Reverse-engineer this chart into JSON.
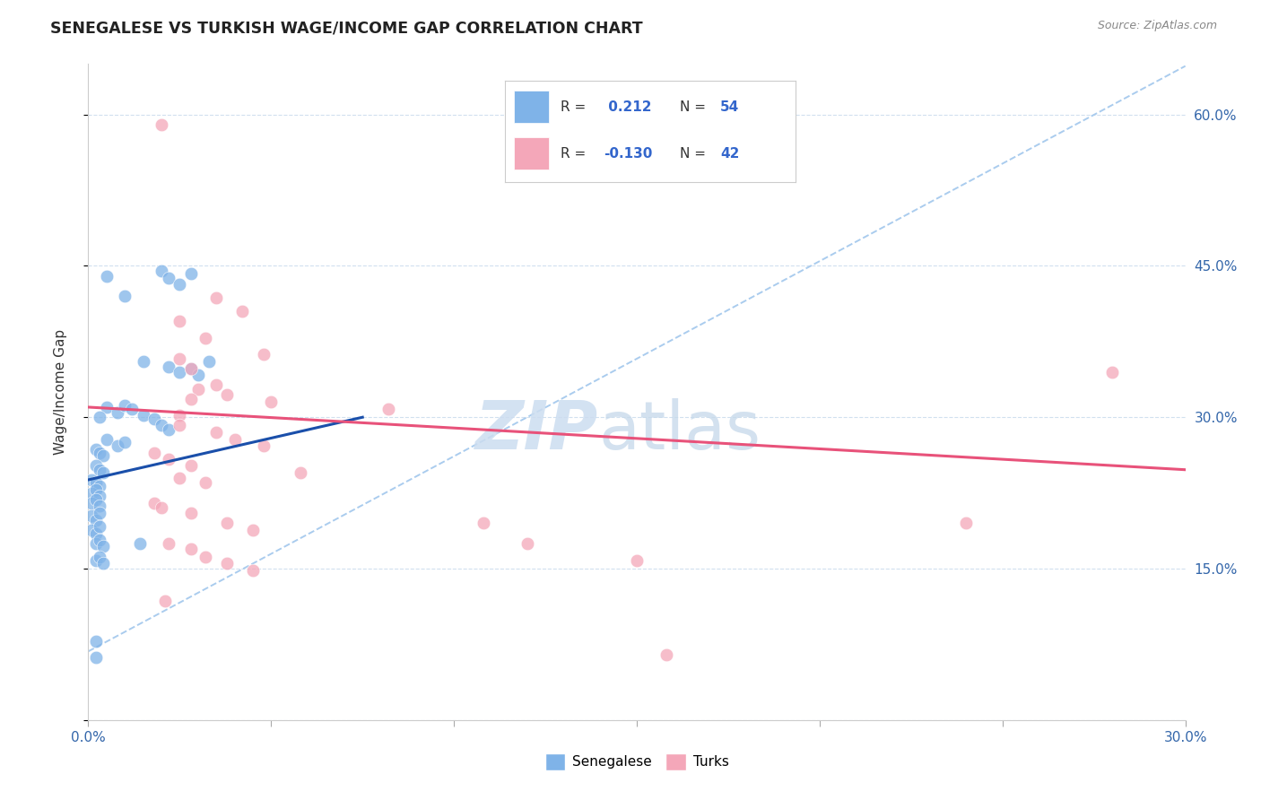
{
  "title": "SENEGALESE VS TURKISH WAGE/INCOME GAP CORRELATION CHART",
  "source": "Source: ZipAtlas.com",
  "ylabel": "Wage/Income Gap",
  "x_min": 0.0,
  "x_max": 0.3,
  "y_min": 0.0,
  "y_max": 0.65,
  "legend_blue_r": "0.212",
  "legend_blue_n": "54",
  "legend_pink_r": "-0.130",
  "legend_pink_n": "42",
  "blue_color": "#7fb3e8",
  "pink_color": "#f4a7b9",
  "blue_line_color": "#1a4faa",
  "pink_line_color": "#e8527a",
  "diagonal_color": "#aaccee",
  "blue_line": [
    [
      0.0,
      0.238
    ],
    [
      0.075,
      0.3
    ]
  ],
  "pink_line": [
    [
      0.0,
      0.31
    ],
    [
      0.3,
      0.248
    ]
  ],
  "diagonal_line": [
    [
      0.0,
      0.068
    ],
    [
      0.3,
      0.648
    ]
  ],
  "senegalese_scatter": [
    [
      0.005,
      0.44
    ],
    [
      0.02,
      0.445
    ],
    [
      0.022,
      0.438
    ],
    [
      0.025,
      0.432
    ],
    [
      0.028,
      0.442
    ],
    [
      0.01,
      0.42
    ],
    [
      0.015,
      0.355
    ],
    [
      0.022,
      0.35
    ],
    [
      0.025,
      0.345
    ],
    [
      0.028,
      0.348
    ],
    [
      0.033,
      0.355
    ],
    [
      0.03,
      0.342
    ],
    [
      0.005,
      0.31
    ],
    [
      0.008,
      0.305
    ],
    [
      0.003,
      0.3
    ],
    [
      0.01,
      0.312
    ],
    [
      0.012,
      0.308
    ],
    [
      0.015,
      0.302
    ],
    [
      0.018,
      0.298
    ],
    [
      0.02,
      0.292
    ],
    [
      0.022,
      0.288
    ],
    [
      0.005,
      0.278
    ],
    [
      0.008,
      0.272
    ],
    [
      0.01,
      0.275
    ],
    [
      0.002,
      0.268
    ],
    [
      0.003,
      0.265
    ],
    [
      0.004,
      0.262
    ],
    [
      0.002,
      0.252
    ],
    [
      0.003,
      0.248
    ],
    [
      0.004,
      0.245
    ],
    [
      0.001,
      0.238
    ],
    [
      0.002,
      0.235
    ],
    [
      0.003,
      0.232
    ],
    [
      0.001,
      0.225
    ],
    [
      0.002,
      0.228
    ],
    [
      0.003,
      0.222
    ],
    [
      0.001,
      0.215
    ],
    [
      0.002,
      0.218
    ],
    [
      0.003,
      0.212
    ],
    [
      0.001,
      0.202
    ],
    [
      0.002,
      0.198
    ],
    [
      0.003,
      0.205
    ],
    [
      0.001,
      0.188
    ],
    [
      0.002,
      0.185
    ],
    [
      0.003,
      0.192
    ],
    [
      0.002,
      0.175
    ],
    [
      0.003,
      0.178
    ],
    [
      0.004,
      0.172
    ],
    [
      0.002,
      0.158
    ],
    [
      0.003,
      0.162
    ],
    [
      0.004,
      0.155
    ],
    [
      0.014,
      0.175
    ],
    [
      0.002,
      0.078
    ],
    [
      0.002,
      0.062
    ]
  ],
  "turks_scatter": [
    [
      0.02,
      0.59
    ],
    [
      0.035,
      0.418
    ],
    [
      0.042,
      0.405
    ],
    [
      0.025,
      0.395
    ],
    [
      0.032,
      0.378
    ],
    [
      0.048,
      0.362
    ],
    [
      0.025,
      0.358
    ],
    [
      0.028,
      0.348
    ],
    [
      0.035,
      0.332
    ],
    [
      0.03,
      0.328
    ],
    [
      0.038,
      0.322
    ],
    [
      0.028,
      0.318
    ],
    [
      0.05,
      0.315
    ],
    [
      0.082,
      0.308
    ],
    [
      0.025,
      0.302
    ],
    [
      0.025,
      0.292
    ],
    [
      0.035,
      0.285
    ],
    [
      0.04,
      0.278
    ],
    [
      0.048,
      0.272
    ],
    [
      0.018,
      0.265
    ],
    [
      0.022,
      0.258
    ],
    [
      0.028,
      0.252
    ],
    [
      0.058,
      0.245
    ],
    [
      0.025,
      0.24
    ],
    [
      0.032,
      0.235
    ],
    [
      0.018,
      0.215
    ],
    [
      0.02,
      0.21
    ],
    [
      0.028,
      0.205
    ],
    [
      0.038,
      0.195
    ],
    [
      0.045,
      0.188
    ],
    [
      0.022,
      0.175
    ],
    [
      0.028,
      0.17
    ],
    [
      0.032,
      0.162
    ],
    [
      0.038,
      0.155
    ],
    [
      0.045,
      0.148
    ],
    [
      0.021,
      0.118
    ],
    [
      0.12,
      0.175
    ],
    [
      0.15,
      0.158
    ],
    [
      0.108,
      0.195
    ],
    [
      0.24,
      0.195
    ],
    [
      0.158,
      0.065
    ],
    [
      0.28,
      0.345
    ]
  ]
}
